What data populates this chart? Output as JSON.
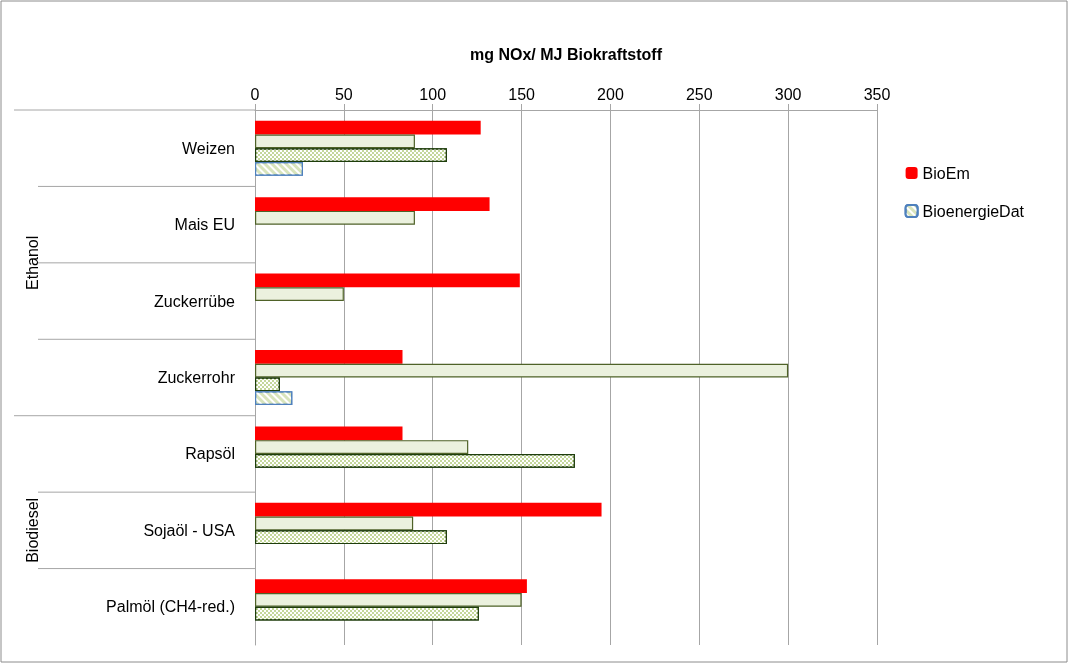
{
  "chart_data": {
    "type": "bar",
    "orientation": "horizontal",
    "xlabel": "mg NOx/ MJ Biokraftstoff",
    "categories": [
      "Weizen",
      "Mais EU",
      "Zuckerrübe",
      "Zuckerrohr",
      "Rapsöl",
      "Sojaöl - USA",
      "Palmöl (CH4-red.)"
    ],
    "series": [
      {
        "name": "BioEm",
        "color": "#ff0000",
        "values": [
          127,
          132,
          149,
          83,
          83,
          195,
          153
        ]
      },
      {
        "color": "#ebf1de",
        "values": [
          90,
          90,
          50,
          300,
          120,
          89,
          150
        ]
      },
      {
        "color": "#c4d79b",
        "values": [
          108,
          null,
          null,
          14,
          180,
          108,
          126
        ]
      },
      {
        "name": "BioenergieDat",
        "color": "#d8e4bc",
        "values": [
          27,
          null,
          null,
          21,
          null,
          null,
          null
        ]
      }
    ],
    "xlim": [
      0,
      350
    ],
    "xticks": [
      0,
      50,
      100,
      150,
      200,
      250,
      300,
      350
    ],
    "annotations": [
      "Ethanol",
      "Biodiesel"
    ],
    "grid": "x",
    "legend": "right"
  }
}
